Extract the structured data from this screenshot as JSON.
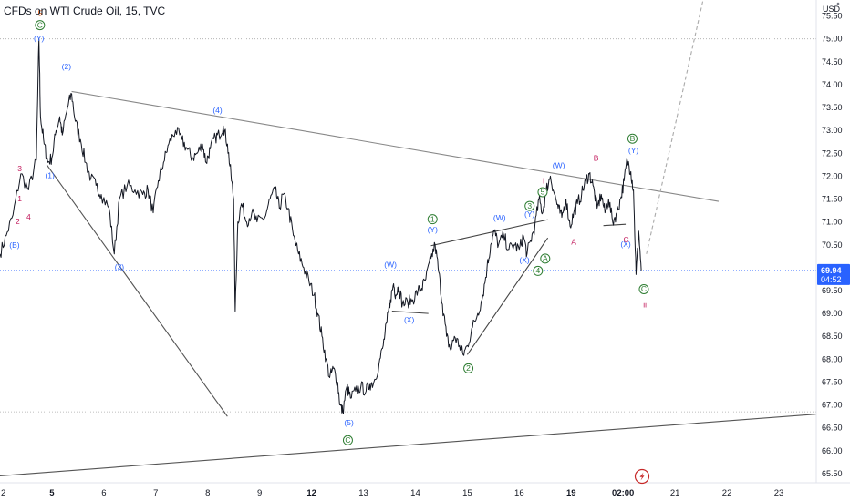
{
  "header": {
    "title": "CFDs on WTI Crude Oil, 15, TVC"
  },
  "chart_data": {
    "type": "line",
    "symbol": "CFDs on WTI Crude Oil",
    "interval": "15",
    "source": "TVC",
    "currency_label": "USD",
    "y_ticks": [
      65.5,
      66.0,
      66.5,
      67.0,
      67.5,
      68.0,
      68.5,
      69.0,
      69.5,
      70.0,
      70.5,
      71.0,
      71.5,
      72.0,
      72.5,
      73.0,
      73.5,
      74.0,
      74.5,
      75.0,
      75.5
    ],
    "ylim": [
      65.3,
      75.85
    ],
    "x_axis": {
      "ticks": [
        {
          "label": "2",
          "x": 0.0,
          "bold": false
        },
        {
          "label": "5",
          "x": 1.0,
          "bold": true
        },
        {
          "label": "6",
          "x": 2.0,
          "bold": false
        },
        {
          "label": "7",
          "x": 3.0,
          "bold": false
        },
        {
          "label": "8",
          "x": 4.0,
          "bold": false
        },
        {
          "label": "9",
          "x": 5.0,
          "bold": false
        },
        {
          "label": "12",
          "x": 6.0,
          "bold": true
        },
        {
          "label": "13",
          "x": 7.0,
          "bold": false
        },
        {
          "label": "14",
          "x": 8.0,
          "bold": false
        },
        {
          "label": "15",
          "x": 9.0,
          "bold": false
        },
        {
          "label": "16",
          "x": 10.0,
          "bold": false
        },
        {
          "label": "19",
          "x": 11.0,
          "bold": true
        },
        {
          "label": "02:00",
          "x": 12.0,
          "bold": true
        },
        {
          "label": "21",
          "x": 13.0,
          "bold": false
        },
        {
          "label": "22",
          "x": 14.0,
          "bold": false
        },
        {
          "label": "23",
          "x": 15.0,
          "bold": false
        }
      ],
      "xlim": [
        0.0,
        15.72
      ]
    },
    "price_path": [
      [
        0.0,
        70.3
      ],
      [
        0.12,
        70.7
      ],
      [
        0.25,
        71.15
      ],
      [
        0.4,
        72.05
      ],
      [
        0.55,
        71.7
      ],
      [
        0.7,
        72.35
      ],
      [
        0.75,
        75.0
      ],
      [
        0.78,
        73.3
      ],
      [
        0.85,
        72.7
      ],
      [
        0.92,
        72.3
      ],
      [
        1.0,
        72.4
      ],
      [
        1.08,
        73.0
      ],
      [
        1.15,
        73.3
      ],
      [
        1.2,
        72.9
      ],
      [
        1.3,
        73.5
      ],
      [
        1.38,
        73.8
      ],
      [
        1.45,
        73.2
      ],
      [
        1.55,
        72.8
      ],
      [
        1.65,
        72.3
      ],
      [
        1.75,
        71.95
      ],
      [
        1.85,
        71.8
      ],
      [
        1.95,
        71.6
      ],
      [
        2.1,
        71.3
      ],
      [
        2.2,
        70.3
      ],
      [
        2.3,
        71.5
      ],
      [
        2.45,
        71.8
      ],
      [
        2.6,
        71.7
      ],
      [
        2.75,
        71.6
      ],
      [
        2.85,
        71.7
      ],
      [
        2.95,
        71.2
      ],
      [
        3.05,
        71.9
      ],
      [
        3.15,
        72.3
      ],
      [
        3.25,
        72.7
      ],
      [
        3.38,
        73.0
      ],
      [
        3.5,
        72.8
      ],
      [
        3.6,
        72.6
      ],
      [
        3.7,
        72.4
      ],
      [
        3.8,
        72.5
      ],
      [
        3.9,
        72.7
      ],
      [
        3.97,
        72.3
      ],
      [
        4.05,
        72.6
      ],
      [
        4.15,
        72.85
      ],
      [
        4.22,
        72.9
      ],
      [
        4.3,
        73.1
      ],
      [
        4.38,
        72.7
      ],
      [
        4.45,
        72.0
      ],
      [
        4.5,
        71.5
      ],
      [
        4.53,
        69.05
      ],
      [
        4.58,
        71.0
      ],
      [
        4.65,
        71.4
      ],
      [
        4.75,
        71.0
      ],
      [
        4.85,
        71.2
      ],
      [
        4.95,
        71.0
      ],
      [
        5.1,
        71.1
      ],
      [
        5.2,
        71.5
      ],
      [
        5.3,
        71.7
      ],
      [
        5.38,
        71.3
      ],
      [
        5.45,
        71.6
      ],
      [
        5.55,
        71.3
      ],
      [
        5.65,
        70.7
      ],
      [
        5.75,
        70.3
      ],
      [
        5.85,
        70.0
      ],
      [
        5.95,
        69.7
      ],
      [
        6.05,
        69.4
      ],
      [
        6.12,
        69.0
      ],
      [
        6.2,
        68.5
      ],
      [
        6.28,
        68.0
      ],
      [
        6.35,
        67.6
      ],
      [
        6.42,
        67.8
      ],
      [
        6.5,
        67.5
      ],
      [
        6.55,
        67.0
      ],
      [
        6.6,
        66.85
      ],
      [
        6.68,
        67.4
      ],
      [
        6.75,
        67.15
      ],
      [
        6.85,
        67.3
      ],
      [
        6.95,
        67.4
      ],
      [
        7.05,
        67.3
      ],
      [
        7.12,
        67.45
      ],
      [
        7.2,
        67.5
      ],
      [
        7.3,
        67.9
      ],
      [
        7.38,
        68.3
      ],
      [
        7.45,
        68.8
      ],
      [
        7.52,
        69.3
      ],
      [
        7.58,
        69.65
      ],
      [
        7.62,
        69.4
      ],
      [
        7.68,
        69.6
      ],
      [
        7.75,
        69.2
      ],
      [
        7.85,
        69.25
      ],
      [
        7.95,
        69.3
      ],
      [
        8.05,
        69.5
      ],
      [
        8.12,
        69.55
      ],
      [
        8.2,
        69.75
      ],
      [
        8.3,
        70.2
      ],
      [
        8.38,
        70.5
      ],
      [
        8.45,
        69.9
      ],
      [
        8.52,
        69.2
      ],
      [
        8.6,
        68.5
      ],
      [
        8.68,
        68.2
      ],
      [
        8.75,
        68.5
      ],
      [
        8.85,
        68.3
      ],
      [
        8.92,
        68.1
      ],
      [
        9.0,
        68.3
      ],
      [
        9.1,
        68.7
      ],
      [
        9.2,
        69.0
      ],
      [
        9.3,
        69.4
      ],
      [
        9.38,
        70.0
      ],
      [
        9.45,
        70.5
      ],
      [
        9.52,
        70.8
      ],
      [
        9.6,
        70.5
      ],
      [
        9.7,
        70.7
      ],
      [
        9.8,
        70.4
      ],
      [
        9.9,
        70.5
      ],
      [
        10.0,
        70.4
      ],
      [
        10.08,
        70.7
      ],
      [
        10.15,
        70.3
      ],
      [
        10.22,
        70.6
      ],
      [
        10.3,
        70.9
      ],
      [
        10.38,
        71.5
      ],
      [
        10.45,
        71.2
      ],
      [
        10.52,
        71.7
      ],
      [
        10.6,
        72.0
      ],
      [
        10.68,
        71.6
      ],
      [
        10.75,
        71.3
      ],
      [
        10.82,
        71.1
      ],
      [
        10.9,
        71.5
      ],
      [
        10.98,
        70.9
      ],
      [
        11.05,
        71.2
      ],
      [
        11.12,
        71.4
      ],
      [
        11.2,
        71.6
      ],
      [
        11.28,
        71.9
      ],
      [
        11.35,
        72.05
      ],
      [
        11.42,
        71.8
      ],
      [
        11.5,
        71.3
      ],
      [
        11.58,
        71.6
      ],
      [
        11.65,
        71.2
      ],
      [
        11.72,
        71.5
      ],
      [
        11.8,
        71.0
      ],
      [
        11.88,
        71.2
      ],
      [
        11.95,
        71.5
      ],
      [
        12.02,
        71.9
      ],
      [
        12.08,
        72.35
      ],
      [
        12.15,
        72.1
      ],
      [
        12.2,
        71.7
      ],
      [
        12.25,
        69.85
      ],
      [
        12.3,
        70.8
      ],
      [
        12.35,
        69.94
      ]
    ],
    "current_price": {
      "value": "69.94",
      "countdown": "04:52"
    },
    "horizontal_levels": [
      75.0,
      66.85
    ],
    "trendlines": [
      {
        "from": [
          1.38,
          73.85
        ],
        "to": [
          13.84,
          71.45
        ],
        "color": "#888888"
      },
      {
        "from": [
          0.9,
          72.25
        ],
        "to": [
          4.38,
          66.75
        ],
        "color": "#555555"
      },
      {
        "from": [
          0.0,
          65.45
        ],
        "to": [
          15.72,
          66.8
        ],
        "color": "#555555"
      },
      {
        "from": [
          8.3,
          70.48
        ],
        "to": [
          10.55,
          71.05
        ],
        "color": "#444444"
      },
      {
        "from": [
          9.0,
          68.1
        ],
        "to": [
          10.55,
          70.65
        ],
        "color": "#444444"
      },
      {
        "from": [
          7.55,
          69.05
        ],
        "to": [
          8.25,
          69.0
        ],
        "color": "#444444"
      },
      {
        "from": [
          11.62,
          70.92
        ],
        "to": [
          12.05,
          70.95
        ],
        "color": "#444444"
      },
      {
        "from": [
          12.45,
          70.3
        ],
        "to": [
          13.55,
          75.9
        ],
        "color": "#aaaaaa",
        "dashed": true
      }
    ],
    "wave_labels": [
      {
        "text": "(2)",
        "x": 1.28,
        "y": 74.38,
        "color": "#2962ff"
      },
      {
        "text": "(4)",
        "x": 4.19,
        "y": 73.43,
        "color": "#2962ff"
      },
      {
        "text": "(1)",
        "x": 0.96,
        "y": 72.0,
        "color": "#2962ff"
      },
      {
        "text": "(3)",
        "x": 2.3,
        "y": 70.0,
        "color": "#2962ff"
      },
      {
        "text": "(5)",
        "x": 6.72,
        "y": 66.6,
        "color": "#2962ff"
      },
      {
        "text": "(W)",
        "x": 7.52,
        "y": 70.05,
        "color": "#2962ff"
      },
      {
        "text": "(X)",
        "x": 7.88,
        "y": 68.85,
        "color": "#2962ff"
      },
      {
        "text": "(Y)",
        "x": 8.33,
        "y": 70.82,
        "color": "#2962ff"
      },
      {
        "text": "(W)",
        "x": 9.62,
        "y": 71.08,
        "color": "#2962ff"
      },
      {
        "text": "(X)",
        "x": 10.1,
        "y": 70.15,
        "color": "#2962ff"
      },
      {
        "text": "(Y)",
        "x": 10.2,
        "y": 71.16,
        "color": "#2962ff"
      },
      {
        "text": "(W)",
        "x": 10.76,
        "y": 72.22,
        "color": "#2962ff"
      },
      {
        "text": "(Y)",
        "x": 12.2,
        "y": 72.55,
        "color": "#2962ff"
      },
      {
        "text": "(X)",
        "x": 12.05,
        "y": 70.5,
        "color": "#2962ff"
      },
      {
        "text": "(Y)",
        "x": 0.75,
        "y": 75.0,
        "color": "#2962ff"
      },
      {
        "text": "(B)",
        "x": 0.28,
        "y": 70.48,
        "color": "#2962ff"
      },
      {
        "text": "A",
        "x": 11.05,
        "y": 70.55,
        "color": "#c2185b"
      },
      {
        "text": "B",
        "x": 11.48,
        "y": 72.38,
        "color": "#c2185b"
      },
      {
        "text": "C",
        "x": 12.06,
        "y": 70.6,
        "color": "#c2185b"
      },
      {
        "text": "3",
        "x": 0.38,
        "y": 72.15,
        "color": "#c2185b"
      },
      {
        "text": "i",
        "x": 10.47,
        "y": 71.88,
        "color": "#c2185b"
      },
      {
        "text": "ii",
        "x": 12.42,
        "y": 69.18,
        "color": "#c2185b"
      },
      {
        "text": "1",
        "x": 0.38,
        "y": 71.5,
        "color": "#c2185b"
      },
      {
        "text": "2",
        "x": 0.34,
        "y": 71.0,
        "color": "#c2185b"
      },
      {
        "text": "4",
        "x": 0.55,
        "y": 71.1,
        "color": "#c2185b"
      },
      {
        "text": "5",
        "x": 0.77,
        "y": 75.55,
        "color": "#e65100"
      }
    ],
    "circled_labels": [
      {
        "text": "C",
        "x": 0.77,
        "y": 75.3,
        "color": "#2e7d32"
      },
      {
        "text": "1",
        "x": 8.33,
        "y": 71.06,
        "color": "#2e7d32"
      },
      {
        "text": "2",
        "x": 9.02,
        "y": 67.8,
        "color": "#2e7d32"
      },
      {
        "text": "3",
        "x": 10.2,
        "y": 71.35,
        "color": "#2e7d32"
      },
      {
        "text": "4",
        "x": 10.36,
        "y": 69.93,
        "color": "#2e7d32"
      },
      {
        "text": "5",
        "x": 10.45,
        "y": 71.65,
        "color": "#2e7d32"
      },
      {
        "text": "A",
        "x": 10.5,
        "y": 70.2,
        "color": "#2e7d32"
      },
      {
        "text": "B",
        "x": 12.18,
        "y": 72.82,
        "color": "#2e7d32"
      },
      {
        "text": "C",
        "x": 12.4,
        "y": 69.53,
        "color": "#2e7d32"
      },
      {
        "text": "C",
        "x": 6.7,
        "y": 66.23,
        "color": "#2e7d32"
      }
    ],
    "grid": false,
    "colors": {
      "price": "#131722",
      "axis_text": "#131722",
      "price_tag_bg": "#2962ff",
      "price_tag_text": "#ffffff",
      "level_line": "#aaaaaa",
      "current_line": "#2962ff",
      "flash_icon": "#c62828"
    }
  }
}
